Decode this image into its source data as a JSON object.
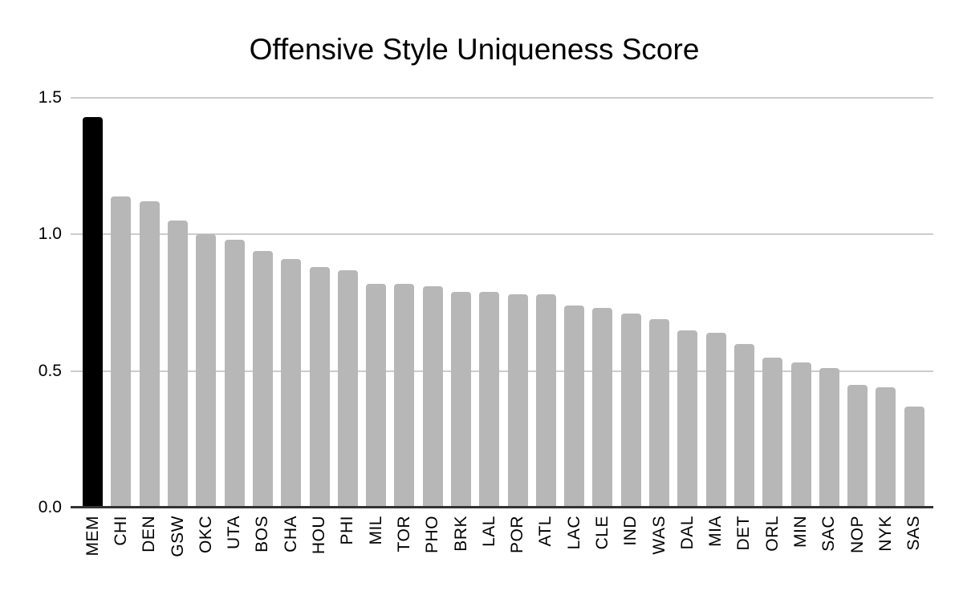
{
  "chart_data": {
    "type": "bar",
    "title": "Offensive Style Uniqueness Score",
    "xlabel": "",
    "ylabel": "",
    "categories": [
      "MEM",
      "CHI",
      "DEN",
      "GSW",
      "OKC",
      "UTA",
      "BOS",
      "CHA",
      "HOU",
      "PHI",
      "MIL",
      "TOR",
      "PHO",
      "BRK",
      "LAL",
      "POR",
      "ATL",
      "LAC",
      "CLE",
      "IND",
      "WAS",
      "DAL",
      "MIA",
      "DET",
      "ORL",
      "MIN",
      "SAC",
      "NOP",
      "NYK",
      "SAS"
    ],
    "values": [
      1.43,
      1.14,
      1.12,
      1.05,
      1.0,
      0.98,
      0.94,
      0.91,
      0.88,
      0.87,
      0.82,
      0.82,
      0.81,
      0.79,
      0.79,
      0.78,
      0.78,
      0.74,
      0.73,
      0.71,
      0.69,
      0.65,
      0.64,
      0.6,
      0.55,
      0.53,
      0.51,
      0.45,
      0.44,
      0.37
    ],
    "highlight_category": "MEM",
    "ylim": [
      0,
      1.5
    ],
    "ytick_labels": [
      "1.5",
      "1.0",
      "0.5",
      "0.0"
    ],
    "yticks": [
      1.5,
      1.0,
      0.5,
      0.0
    ],
    "grid": true,
    "legend_position": "none",
    "colors": {
      "bar": "#b7b7b7",
      "highlight_bar": "#000000",
      "gridline": "#cccccc",
      "axis_line": "#333333",
      "text": "#000000",
      "background": "#ffffff"
    }
  }
}
